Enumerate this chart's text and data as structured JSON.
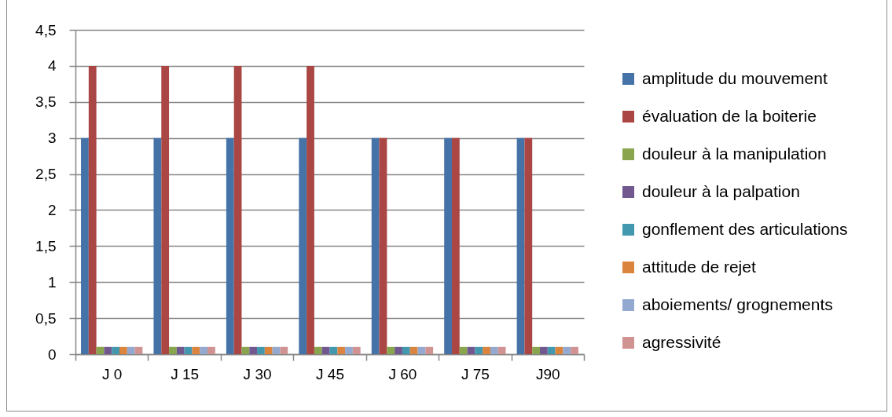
{
  "chart_data": {
    "type": "bar",
    "categories": [
      "J 0",
      "J 15",
      "J 30",
      "J 45",
      "J 60",
      "J 75",
      "J90"
    ],
    "series": [
      {
        "name": "amplitude du mouvement",
        "color": "#4572a7",
        "values": [
          3,
          3,
          3,
          3,
          3,
          3,
          3
        ]
      },
      {
        "name": "évaluation de la boiterie",
        "color": "#aa4643",
        "values": [
          4,
          4,
          4,
          4,
          3,
          3,
          3
        ]
      },
      {
        "name": "douleur à la manipulation",
        "color": "#89a54e",
        "values": [
          0.1,
          0.1,
          0.1,
          0.1,
          0.1,
          0.1,
          0.1
        ]
      },
      {
        "name": "douleur à la palpation",
        "color": "#71588f",
        "values": [
          0.1,
          0.1,
          0.1,
          0.1,
          0.1,
          0.1,
          0.1
        ]
      },
      {
        "name": "gonflement des articulations",
        "color": "#4198af",
        "values": [
          0.1,
          0.1,
          0.1,
          0.1,
          0.1,
          0.1,
          0.1
        ]
      },
      {
        "name": "attitude de rejet",
        "color": "#db843d",
        "values": [
          0.1,
          0.1,
          0.1,
          0.1,
          0.1,
          0.1,
          0.1
        ]
      },
      {
        "name": "aboiements/ grognements",
        "color": "#93a9cf",
        "values": [
          0.1,
          0.1,
          0.1,
          0.1,
          0.1,
          0.1,
          0.1
        ]
      },
      {
        "name": "agressivité",
        "color": "#d19392",
        "values": [
          0.1,
          0.1,
          0.1,
          0.1,
          0.1,
          0.1,
          0.1
        ]
      }
    ],
    "ylim": [
      0,
      4.5
    ],
    "yticks": [
      0,
      {
        "value": 0.5,
        "label": "0,5"
      },
      1,
      {
        "value": 1.5,
        "label": "1,5"
      },
      2,
      {
        "value": 2.5,
        "label": "2,5"
      },
      3,
      {
        "value": 3.5,
        "label": "3,5"
      },
      4,
      {
        "value": 4.5,
        "label": "4,5"
      }
    ],
    "grid": "y",
    "legend": "right"
  }
}
